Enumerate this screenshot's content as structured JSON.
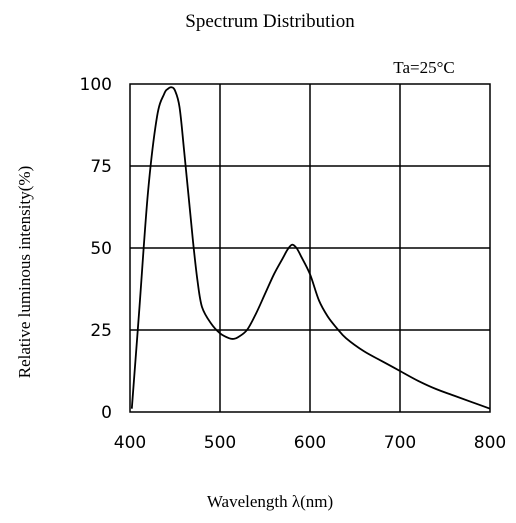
{
  "chart_data": {
    "type": "line",
    "title": "Spectrum Distribution",
    "annotation": "Ta=25°C",
    "xlabel": "Wavelength λ(nm)",
    "ylabel": "Relative luminous intensity(%)",
    "xlim": [
      400,
      800
    ],
    "ylim": [
      0,
      100
    ],
    "x_ticks": [
      "400",
      "500",
      "600",
      "700",
      "800"
    ],
    "y_ticks": [
      "0",
      "25",
      "50",
      "75",
      "100"
    ],
    "grid": true,
    "line_color": "#000000",
    "series": [
      {
        "x": [
          402,
          410,
          420,
          430,
          438,
          442,
          446,
          450,
          455,
          460,
          470,
          475,
          480,
          490,
          500,
          510,
          515,
          520,
          530,
          540,
          550,
          560,
          570,
          575,
          580,
          585,
          590,
          600,
          610,
          620,
          630,
          640,
          660,
          680,
          700,
          720,
          740,
          760,
          780,
          800
        ],
        "y": [
          1,
          30,
          67,
          90,
          97,
          98.5,
          99,
          98,
          93,
          80,
          52,
          40,
          32,
          27,
          24,
          22.5,
          22.3,
          22.8,
          25,
          30,
          36,
          42,
          47,
          49.5,
          51,
          50,
          47.5,
          42,
          34,
          29,
          25.5,
          22.5,
          18.5,
          15.5,
          12.5,
          9.5,
          7,
          5,
          3,
          1
        ]
      }
    ]
  }
}
